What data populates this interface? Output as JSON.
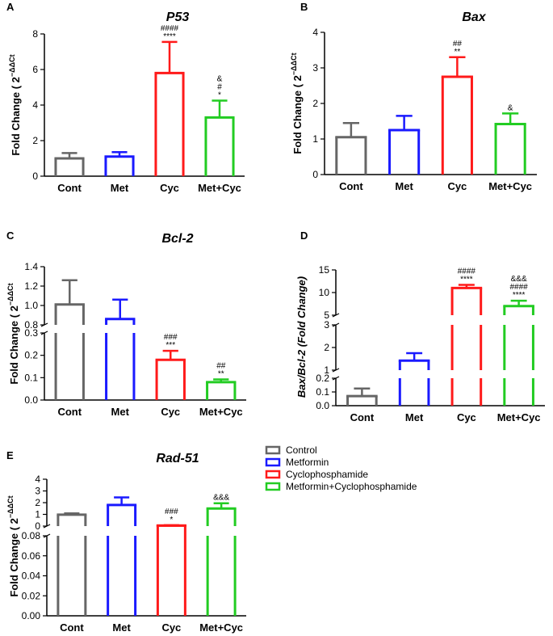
{
  "figure": {
    "width": 685,
    "height": 787
  },
  "chart_data": [
    {
      "panel": "A",
      "title": "P53",
      "type": "bar",
      "ylabel": "Fold Change ( 2",
      "ylabel_sup": "−ΔΔCt",
      "categories": [
        "Cont",
        "Met",
        "Cyc",
        "Met+Cyc"
      ],
      "values": [
        1.0,
        1.1,
        5.8,
        3.3
      ],
      "errors": [
        0.3,
        0.25,
        1.75,
        0.95
      ],
      "ylim": [
        0,
        8
      ],
      "yticks": [
        "0",
        "2",
        "4",
        "6",
        "8"
      ],
      "annotations": [
        [],
        [],
        [
          "####",
          "****"
        ],
        [
          "&",
          "#",
          "*"
        ]
      ]
    },
    {
      "panel": "B",
      "title": "Bax",
      "type": "bar",
      "ylabel": "Fold Change ( 2",
      "ylabel_sup": "−ΔΔCt",
      "categories": [
        "Cont",
        "Met",
        "Cyc",
        "Met+Cyc"
      ],
      "values": [
        1.05,
        1.25,
        2.75,
        1.42
      ],
      "errors": [
        0.4,
        0.4,
        0.55,
        0.3
      ],
      "ylim": [
        0,
        4
      ],
      "yticks": [
        "0",
        "1",
        "2",
        "3",
        "4"
      ],
      "annotations": [
        [],
        [],
        [
          "##",
          "**"
        ],
        [
          "&"
        ]
      ]
    },
    {
      "panel": "C",
      "title": "Bcl-2",
      "type": "bar",
      "ylabel": "Fold Change ( 2",
      "ylabel_sup": "−ΔΔCt",
      "categories": [
        "Cont",
        "Met",
        "Cyc",
        "Met+Cyc"
      ],
      "values": [
        1.01,
        0.86,
        0.18,
        0.08
      ],
      "errors": [
        0.25,
        0.2,
        0.04,
        0.012
      ],
      "segments": [
        {
          "min": 0,
          "max": 0.3
        },
        {
          "min": 0.8,
          "max": 1.4
        }
      ],
      "yticks": [
        [
          "0.0",
          "0.1",
          "0.2",
          "0.3"
        ],
        [
          "0.8",
          "1.0",
          "1.2",
          "1.4"
        ]
      ],
      "annotations": [
        [],
        [],
        [
          "###",
          "***"
        ],
        [
          "##",
          "**"
        ]
      ]
    },
    {
      "panel": "D",
      "title": "",
      "type": "bar",
      "ylabel": "Bax/Bcl-2 (Fold Change)",
      "categories": [
        "Cont",
        "Met",
        "Cyc",
        "Met+Cyc"
      ],
      "values": [
        0.07,
        1.42,
        11.0,
        7.0
      ],
      "errors": [
        0.055,
        0.33,
        0.7,
        1.2
      ],
      "segments": [
        {
          "min": 0,
          "max": 0.2
        },
        {
          "min": 1,
          "max": 3
        },
        {
          "min": 5,
          "max": 15
        }
      ],
      "yticks": [
        [
          "0.0",
          "0.1",
          "0.2"
        ],
        [
          "1",
          "2",
          "3"
        ],
        [
          "5",
          "10",
          "15"
        ]
      ],
      "annotations": [
        [],
        [],
        [
          "####",
          "****"
        ],
        [
          "&&&",
          "####",
          "****"
        ]
      ]
    },
    {
      "panel": "E",
      "title": "Rad-51",
      "type": "bar",
      "ylabel": "Fold Change ( 2",
      "ylabel_sup": "−ΔΔCt",
      "categories": [
        "Cont",
        "Met",
        "Cyc",
        "Met+Cyc"
      ],
      "values": [
        0.97,
        1.8,
        0.041,
        1.5
      ],
      "errors": [
        0.12,
        0.65,
        0.033,
        0.45
      ],
      "segments": [
        {
          "min": 0,
          "max": 0.08
        },
        {
          "min": 0,
          "max": 4
        }
      ],
      "yticks": [
        [
          "0.00",
          "0.02",
          "0.04",
          "0.06",
          "0.08"
        ],
        [
          "0",
          "1",
          "2",
          "3",
          "4"
        ]
      ],
      "annotations": [
        [],
        [],
        [
          "###",
          "*"
        ],
        [
          "&&&"
        ]
      ]
    }
  ],
  "legend": {
    "entries": [
      {
        "label": "Control",
        "color": "#666666"
      },
      {
        "label": "Metformin",
        "color": "#1a1aff"
      },
      {
        "label": "Cyclophosphamide",
        "color": "#ff1a1a"
      },
      {
        "label": "Metformin+Cyclophosphamide",
        "color": "#22cc22"
      }
    ]
  },
  "colors": [
    "#666666",
    "#1a1aff",
    "#ff1a1a",
    "#22cc22"
  ]
}
